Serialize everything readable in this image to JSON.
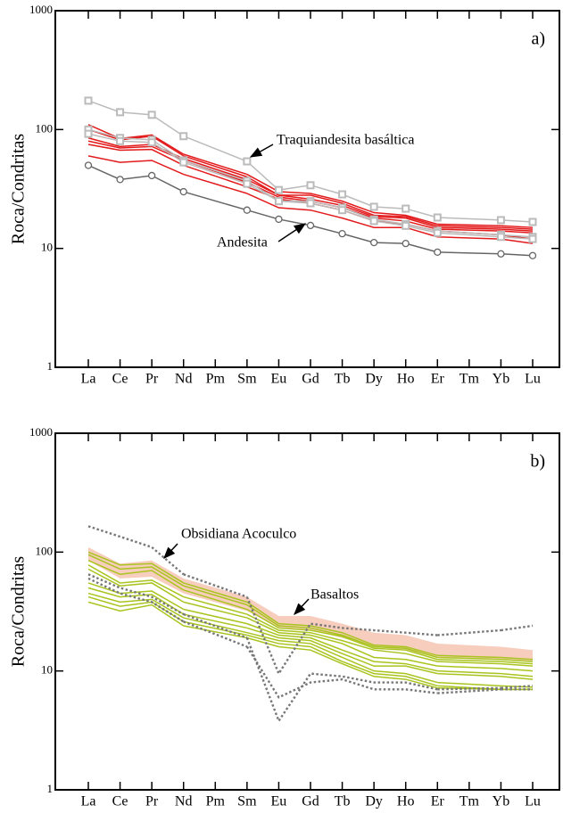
{
  "chart_data": [
    {
      "type": "line",
      "ylabel": "Roca/Condritas",
      "panel_label": "a)",
      "log_y": true,
      "categories": [
        "La",
        "Ce",
        "Pr",
        "Nd",
        "Pm",
        "Sm",
        "Eu",
        "Gd",
        "Tb",
        "Dy",
        "Ho",
        "Er",
        "Tm",
        "Yb",
        "Lu"
      ],
      "ylim": [
        1,
        1000
      ],
      "yticks": [
        1,
        10,
        100,
        1000
      ],
      "annotations": [
        "Traquiandesita basáltica",
        "Andesita"
      ],
      "series": [
        {
          "color": "#e31a1c",
          "marker": "none",
          "values": [
            110,
            84,
            90,
            62,
            null,
            42,
            30,
            29,
            25,
            20,
            19,
            16,
            null,
            15.5,
            15
          ]
        },
        {
          "color": "#e31a1c",
          "marker": "none",
          "values": [
            100,
            82,
            88,
            60,
            null,
            40,
            28,
            28,
            24,
            19,
            18.5,
            15.5,
            null,
            15,
            14.5
          ]
        },
        {
          "color": "#e31a1c",
          "marker": "none",
          "values": [
            85,
            72,
            75,
            57,
            null,
            38,
            28,
            26,
            23,
            18.5,
            18,
            15,
            null,
            14.5,
            14
          ]
        },
        {
          "color": "#e31a1c",
          "marker": "none",
          "values": [
            80,
            70,
            72,
            55,
            null,
            36,
            27,
            25,
            22,
            18,
            17,
            14.5,
            null,
            14,
            13.5
          ]
        },
        {
          "color": "#e31a1c",
          "marker": "none",
          "values": [
            75,
            67,
            68,
            50,
            null,
            33,
            26,
            24,
            21,
            17,
            16,
            14,
            null,
            13,
            12
          ]
        },
        {
          "color": "#e31a1c",
          "marker": "none",
          "values": [
            60,
            53,
            55,
            42,
            null,
            29,
            22,
            21,
            18,
            15,
            15,
            12.5,
            null,
            12,
            11
          ]
        },
        {
          "color": "#bbbbbb",
          "marker": "square",
          "values": [
            175,
            140,
            133,
            88,
            null,
            54,
            31,
            34,
            28.5,
            22.4,
            21.6,
            18.2,
            null,
            17.3,
            16.7
          ]
        },
        {
          "color": "#bbbbbb",
          "marker": "square",
          "values": [
            100,
            85,
            82,
            55,
            null,
            37,
            25,
            25,
            22,
            17.5,
            16,
            14,
            null,
            13,
            12.5
          ]
        },
        {
          "color": "#bbbbbb",
          "marker": "square",
          "values": [
            92,
            80,
            78,
            53,
            null,
            35,
            25,
            24,
            21,
            17,
            15.5,
            13.5,
            null,
            12.5,
            12
          ]
        },
        {
          "color": "#666666",
          "marker": "circle",
          "values": [
            50,
            38,
            41,
            30,
            null,
            21,
            17.6,
            15.6,
            13.3,
            11.2,
            11,
            9.3,
            null,
            9,
            8.7
          ]
        }
      ]
    },
    {
      "type": "line",
      "ylabel": "Roca/Condritas",
      "panel_label": "b)",
      "log_y": true,
      "categories": [
        "La",
        "Ce",
        "Pr",
        "Nd",
        "Pm",
        "Sm",
        "Eu",
        "Gd",
        "Tb",
        "Dy",
        "Ho",
        "Er",
        "Tm",
        "Yb",
        "Lu"
      ],
      "ylim": [
        1,
        1000
      ],
      "yticks": [
        1,
        10,
        100,
        1000
      ],
      "annotations": [
        "Obsidiana Acoculco",
        "Basaltos"
      ],
      "band": {
        "color": "#f7cdbd",
        "upper": [
          110,
          80,
          85,
          60,
          null,
          42,
          29,
          29,
          25,
          21,
          20,
          17,
          null,
          16,
          15
        ],
        "lower": [
          85,
          60,
          62,
          45,
          null,
          32,
          23,
          22,
          19,
          16,
          15,
          13,
          null,
          12.5,
          12
        ]
      },
      "series": [
        {
          "color": "#a9c41e",
          "marker": "none",
          "values": [
            100,
            78,
            80,
            55,
            null,
            38,
            25,
            24,
            21,
            16.5,
            16,
            13.5,
            null,
            13,
            12.5
          ]
        },
        {
          "color": "#a9c41e",
          "marker": "none",
          "values": [
            95,
            72,
            75,
            52,
            null,
            36,
            24,
            23,
            20,
            16,
            15.5,
            13,
            null,
            12.5,
            12
          ]
        },
        {
          "color": "#a9c41e",
          "marker": "none",
          "values": [
            85,
            65,
            70,
            48,
            null,
            33,
            23,
            22,
            19.5,
            15.5,
            15,
            12.5,
            null,
            12,
            11.5
          ]
        },
        {
          "color": "#a9c41e",
          "marker": "none",
          "values": [
            78,
            55,
            58,
            42,
            null,
            30,
            22,
            21,
            18,
            15,
            14,
            12,
            null,
            11.5,
            11
          ]
        },
        {
          "color": "#a9c41e",
          "marker": "none",
          "values": [
            72,
            52,
            55,
            38,
            null,
            28,
            21,
            20,
            17,
            13,
            12.5,
            11,
            null,
            10.5,
            10
          ]
        },
        {
          "color": "#a9c41e",
          "marker": "none",
          "values": [
            55,
            45,
            47,
            33,
            null,
            25,
            20,
            19,
            15,
            12,
            11.5,
            10,
            null,
            9.5,
            9
          ]
        },
        {
          "color": "#a9c41e",
          "marker": "none",
          "values": [
            50,
            42,
            44,
            30,
            null,
            23,
            19,
            18,
            14,
            11,
            11,
            9.5,
            null,
            9,
            8.5
          ]
        },
        {
          "color": "#a9c41e",
          "marker": "none",
          "values": [
            45,
            38,
            40,
            28,
            null,
            21,
            18,
            17,
            13,
            10,
            9.5,
            8,
            null,
            7.5,
            7.3
          ]
        },
        {
          "color": "#a9c41e",
          "marker": "none",
          "values": [
            42,
            35,
            38,
            26,
            null,
            20,
            17,
            16,
            12,
            9.5,
            9,
            7.5,
            null,
            7,
            7
          ]
        },
        {
          "color": "#a9c41e",
          "marker": "none",
          "values": [
            38,
            32,
            36,
            24,
            null,
            19,
            16,
            15,
            11.5,
            9,
            8.5,
            7.2,
            null,
            7,
            7
          ]
        },
        {
          "color": "#777777",
          "marker": "none",
          "dash": true,
          "values": [
            165,
            135,
            110,
            65,
            null,
            42,
            9.5,
            25,
            23,
            22,
            21,
            20,
            null,
            22,
            24
          ]
        },
        {
          "color": "#777777",
          "marker": "none",
          "dash": true,
          "values": [
            65,
            50,
            42,
            30,
            null,
            19,
            3.8,
            9.5,
            9,
            8,
            8,
            7,
            null,
            7.2,
            7.5
          ]
        },
        {
          "color": "#777777",
          "marker": "none",
          "dash": true,
          "values": [
            60,
            45,
            38,
            26,
            null,
            16,
            6,
            8,
            8.5,
            7,
            7,
            6.5,
            null,
            7,
            7
          ]
        }
      ]
    }
  ]
}
